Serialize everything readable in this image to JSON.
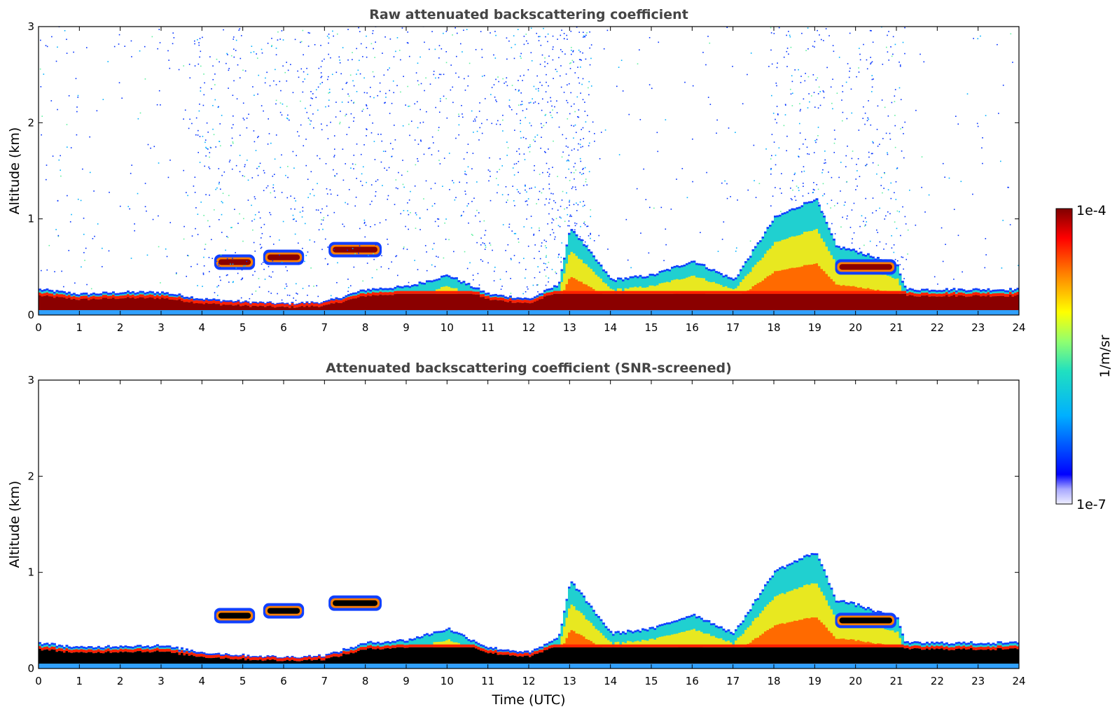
{
  "chart_data": [
    {
      "type": "heatmap",
      "title": "Raw attenuated backscattering coefficient",
      "xlabel": "",
      "ylabel": "Altitude (km)",
      "xlim": [
        0,
        24
      ],
      "ylim": [
        0,
        3
      ],
      "xticks": [
        "0",
        "1",
        "2",
        "3",
        "4",
        "5",
        "6",
        "7",
        "8",
        "9",
        "10",
        "11",
        "12",
        "13",
        "14",
        "15",
        "16",
        "17",
        "18",
        "19",
        "20",
        "21",
        "22",
        "23",
        "24"
      ],
      "yticks": [
        "0",
        "1",
        "2",
        "3"
      ],
      "features": {
        "boundary_layer_top_km": [
          [
            0,
            0.25
          ],
          [
            1,
            0.2
          ],
          [
            2,
            0.22
          ],
          [
            3,
            0.22
          ],
          [
            4,
            0.15
          ],
          [
            5,
            0.12
          ],
          [
            6,
            0.1
          ],
          [
            7,
            0.12
          ],
          [
            8,
            0.25
          ],
          [
            9,
            0.28
          ],
          [
            10,
            0.4
          ],
          [
            11,
            0.2
          ],
          [
            12,
            0.15
          ],
          [
            12.7,
            0.3
          ],
          [
            13,
            0.9
          ],
          [
            14,
            0.35
          ],
          [
            15,
            0.4
          ],
          [
            16,
            0.55
          ],
          [
            17,
            0.35
          ],
          [
            18,
            1.0
          ],
          [
            19,
            1.2
          ],
          [
            19.5,
            0.7
          ],
          [
            20,
            0.65
          ],
          [
            21,
            0.5
          ],
          [
            21.2,
            0.25
          ],
          [
            24,
            0.25
          ]
        ],
        "elevated_aerosol_layers": [
          {
            "t_start": 4.3,
            "t_end": 5.3,
            "alt_km": 0.55
          },
          {
            "t_start": 5.5,
            "t_end": 6.5,
            "alt_km": 0.6
          },
          {
            "t_start": 7.1,
            "t_end": 8.4,
            "alt_km": 0.68
          },
          {
            "t_start": 19.5,
            "t_end": 21.0,
            "alt_km": 0.5
          }
        ],
        "background_noise": true
      }
    },
    {
      "type": "heatmap",
      "title": "Attenuated backscattering coefficient (SNR-screened)",
      "xlabel": "Time (UTC)",
      "ylabel": "Altitude (km)",
      "xlim": [
        0,
        24
      ],
      "ylim": [
        0,
        3
      ],
      "xticks": [
        "0",
        "1",
        "2",
        "3",
        "4",
        "5",
        "6",
        "7",
        "8",
        "9",
        "10",
        "11",
        "12",
        "13",
        "14",
        "15",
        "16",
        "17",
        "18",
        "19",
        "20",
        "21",
        "22",
        "23",
        "24"
      ],
      "yticks": [
        "0",
        "1",
        "2",
        "3"
      ],
      "features": {
        "background_noise": false,
        "saturated_core_color": "#000000"
      }
    }
  ],
  "colorbar": {
    "label": "1/m/sr",
    "max_label": "1e-4",
    "min_label": "1e-7",
    "colormap": "jet",
    "colors": [
      "#e8e8ff",
      "#b0b0ff",
      "#0000ff",
      "#0060ff",
      "#00c0ff",
      "#20e0c0",
      "#80ff80",
      "#e0ff20",
      "#ffc000",
      "#ff6000",
      "#e00000",
      "#800000"
    ]
  }
}
